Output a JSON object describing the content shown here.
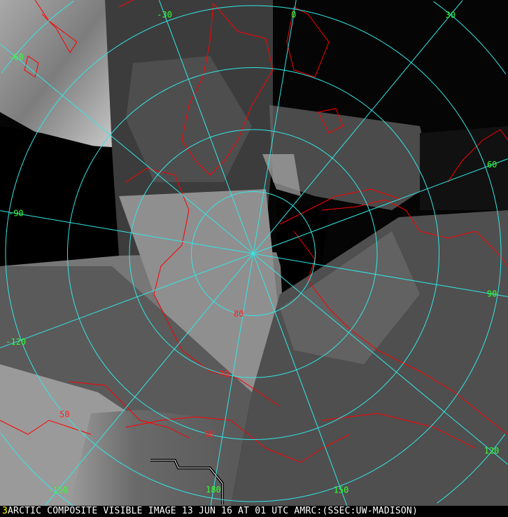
{
  "image": {
    "frame_number": "3",
    "caption": "ARCTIC COMPOSITE VISIBLE IMAGE 13 JUN 16 AT 01 UTC AMRC:(SSEC:UW-MADISON)"
  },
  "graticule": {
    "longitude_labels": [
      {
        "lon": -90,
        "text": "-90"
      },
      {
        "lon": -60,
        "text": "-60"
      },
      {
        "lon": -30,
        "text": "-30"
      },
      {
        "lon": 0,
        "text": "0"
      },
      {
        "lon": 30,
        "text": "30"
      },
      {
        "lon": 60,
        "text": "60"
      },
      {
        "lon": 90,
        "text": "90"
      },
      {
        "lon": 120,
        "text": "120"
      },
      {
        "lon": 150,
        "text": "150"
      },
      {
        "lon": 180,
        "text": "180"
      },
      {
        "lon": -150,
        "text": "-150"
      },
      {
        "lon": -120,
        "text": "-120"
      }
    ],
    "latitude_labels": [
      {
        "lat": 80,
        "text": "80"
      },
      {
        "lat": 70,
        "text": "70"
      },
      {
        "lat": 60,
        "text": "60"
      },
      {
        "lat": 50,
        "text": "50"
      }
    ],
    "latitude_circles": [
      80,
      70,
      60,
      50,
      40
    ]
  },
  "colors": {
    "grid": "#33e6e6",
    "coastline": "#ff0000",
    "longitude_label": "#33ff33",
    "latitude_label": "#ff2020",
    "caption_text": "#ffffff",
    "frame_number": "#ffff00"
  }
}
